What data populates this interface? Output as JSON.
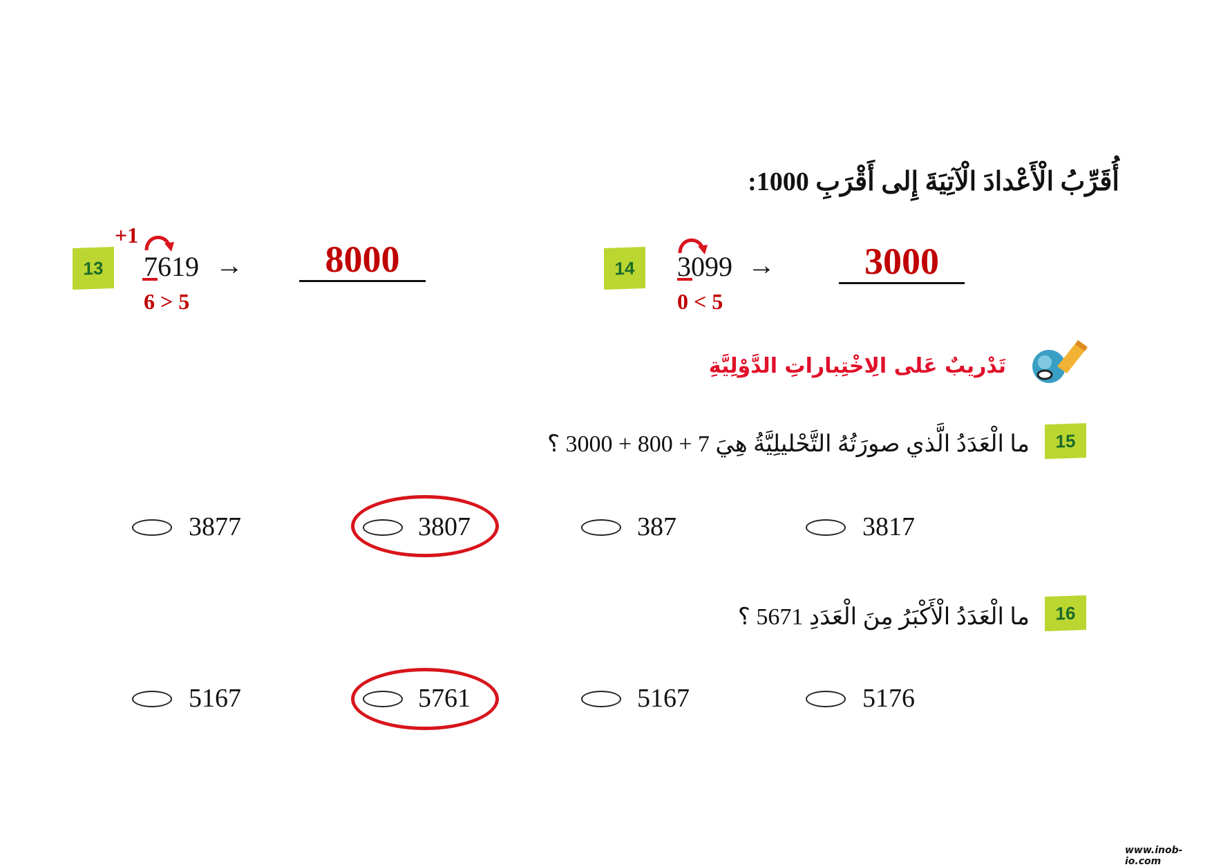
{
  "title": "أُقَرِّبُ الْأَعْدادَ الْآتِيَةَ إِلى أَقْرَبِ 1000:",
  "items": [
    {
      "badge": "13",
      "number": "7619",
      "arrow": "→",
      "answer": "8000",
      "carry": "+1",
      "comparison": "6 > 5"
    },
    {
      "badge": "14",
      "number": "3099",
      "arrow": "→",
      "answer": "3000",
      "comparison": "0 < 5"
    }
  ],
  "section": {
    "title": "تَدْريبٌ عَلى الِاخْتِباراتِ الدَّوْلِيَّةِ",
    "icon": "pencil-globe-icon"
  },
  "questions": [
    {
      "badge": "15",
      "text": "ما الْعَدَدُ الَّذي صورَتُهُ التَّحْليلِيَّةُ هِيَ 7 + 800 + 3000 ؟",
      "options": [
        "3877",
        "3807",
        "387",
        "3817"
      ],
      "selected_index": 1
    },
    {
      "badge": "16",
      "text": "ما الْعَدَدُ الْأَكْبَرُ مِنَ الْعَدَدِ 5671 ؟",
      "options": [
        "5167",
        "5761",
        "5167",
        "5176"
      ],
      "selected_index": 1
    }
  ],
  "watermark": "www.inob-io.com",
  "colors": {
    "badge": "#bcd631",
    "answer_red": "#c00000",
    "section_red": "#e0102a",
    "circle_red": "#d8141c"
  }
}
